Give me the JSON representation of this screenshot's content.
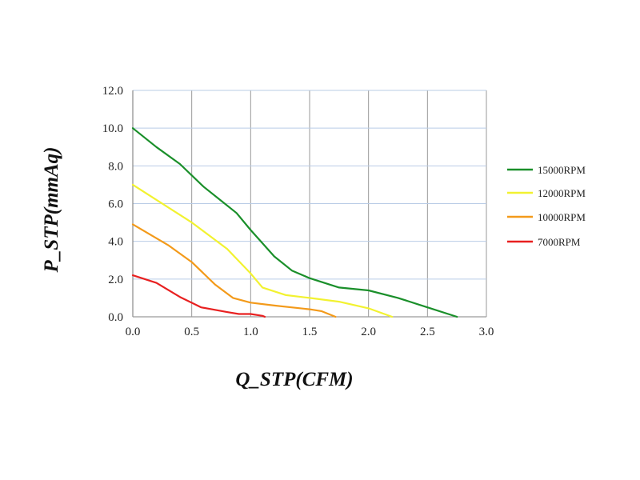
{
  "chart_data": {
    "type": "line",
    "title": "",
    "xlabel": "Q_STP(CFM)",
    "ylabel": "P_STP(mmAq)",
    "xlim": [
      0,
      3.0
    ],
    "ylim": [
      0,
      12.0
    ],
    "x_ticks": [
      "0.0",
      "0.5",
      "1.0",
      "1.5",
      "2.0",
      "2.5",
      "3.0"
    ],
    "y_ticks": [
      "0.0",
      "2.0",
      "4.0",
      "6.0",
      "8.0",
      "10.0",
      "12.0"
    ],
    "grid": true,
    "legend_position": "right",
    "series": [
      {
        "name": "15000RPM",
        "color": "#1a8f2a",
        "points": [
          [
            0,
            10.0
          ],
          [
            0.2,
            9.0
          ],
          [
            0.4,
            8.1
          ],
          [
            0.6,
            6.9
          ],
          [
            0.88,
            5.5
          ],
          [
            1.0,
            4.6
          ],
          [
            1.2,
            3.2
          ],
          [
            1.35,
            2.45
          ],
          [
            1.5,
            2.05
          ],
          [
            1.75,
            1.55
          ],
          [
            2.0,
            1.4
          ],
          [
            2.25,
            1.0
          ],
          [
            2.5,
            0.5
          ],
          [
            2.75,
            0.0
          ]
        ]
      },
      {
        "name": "12000RPM",
        "color": "#f2f230",
        "points": [
          [
            0,
            7.0
          ],
          [
            0.2,
            6.2
          ],
          [
            0.5,
            5.0
          ],
          [
            0.8,
            3.6
          ],
          [
            1.0,
            2.3
          ],
          [
            1.1,
            1.55
          ],
          [
            1.3,
            1.15
          ],
          [
            1.5,
            1.0
          ],
          [
            1.75,
            0.8
          ],
          [
            2.0,
            0.45
          ],
          [
            2.2,
            0.0
          ]
        ]
      },
      {
        "name": "10000RPM",
        "color": "#f39a1a",
        "points": [
          [
            0,
            4.9
          ],
          [
            0.3,
            3.8
          ],
          [
            0.5,
            2.9
          ],
          [
            0.7,
            1.7
          ],
          [
            0.85,
            1.0
          ],
          [
            1.0,
            0.75
          ],
          [
            1.2,
            0.6
          ],
          [
            1.5,
            0.4
          ],
          [
            1.6,
            0.3
          ],
          [
            1.72,
            0.0
          ]
        ]
      },
      {
        "name": "7000RPM",
        "color": "#e82020",
        "points": [
          [
            0,
            2.2
          ],
          [
            0.2,
            1.8
          ],
          [
            0.4,
            1.05
          ],
          [
            0.58,
            0.5
          ],
          [
            0.8,
            0.25
          ],
          [
            0.9,
            0.15
          ],
          [
            1.0,
            0.15
          ],
          [
            1.1,
            0.05
          ],
          [
            1.12,
            0.0
          ]
        ]
      }
    ]
  }
}
